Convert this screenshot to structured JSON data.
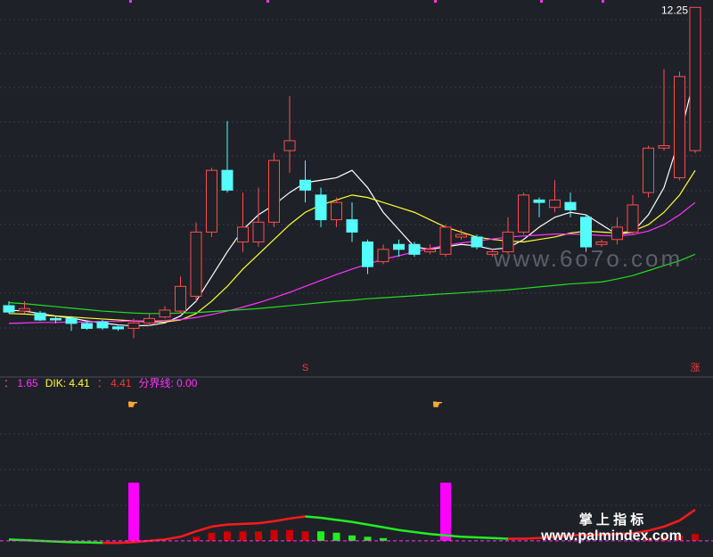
{
  "chart_data": [
    {
      "type": "candlestick",
      "ylim": [
        5.0,
        12.4
      ],
      "up_color": "#ff4d4d",
      "down_color": "#54fcfc",
      "open": [
        6.21,
        6.1,
        6.06,
        5.95,
        5.95,
        5.85,
        5.88,
        5.78,
        5.75,
        5.86,
        5.98,
        6.1,
        6.4,
        7.7,
        8.95,
        7.5,
        7.5,
        7.9,
        9.35,
        8.75,
        8.45,
        7.95,
        7.95,
        7.5,
        7.1,
        7.45,
        7.45,
        7.3,
        7.25,
        7.6,
        7.6,
        7.25,
        7.3,
        7.7,
        8.35,
        8.2,
        8.3,
        8.0,
        7.45,
        7.55,
        7.7,
        8.5,
        9.4,
        8.8,
        9.35
      ],
      "close": [
        6.08,
        6.15,
        5.92,
        5.92,
        5.85,
        5.75,
        5.76,
        5.74,
        5.86,
        5.95,
        6.12,
        6.6,
        7.7,
        8.95,
        8.55,
        7.8,
        7.9,
        9.15,
        9.55,
        8.55,
        7.95,
        8.3,
        7.7,
        7.0,
        7.35,
        7.35,
        7.25,
        7.35,
        7.8,
        7.65,
        7.4,
        7.3,
        7.7,
        8.45,
        8.3,
        8.35,
        8.15,
        7.4,
        7.5,
        7.8,
        8.25,
        9.4,
        9.45,
        10.85,
        12.25
      ],
      "high": [
        6.3,
        6.3,
        6.1,
        6.0,
        6.0,
        5.88,
        5.92,
        5.8,
        5.95,
        6.05,
        6.2,
        6.8,
        7.9,
        9.0,
        9.95,
        8.5,
        8.6,
        9.3,
        10.45,
        9.15,
        8.6,
        8.4,
        8.3,
        7.55,
        7.45,
        7.55,
        7.5,
        7.45,
        7.85,
        7.75,
        7.65,
        7.35,
        8.0,
        8.5,
        8.4,
        8.75,
        8.5,
        8.05,
        7.55,
        8.0,
        8.45,
        9.45,
        11.0,
        10.95,
        12.25
      ],
      "low": [
        6.05,
        6.05,
        5.9,
        5.85,
        5.7,
        5.72,
        5.72,
        5.7,
        5.55,
        5.8,
        5.95,
        6.05,
        6.3,
        7.6,
        8.5,
        7.3,
        7.4,
        7.8,
        8.9,
        8.3,
        7.8,
        7.8,
        7.5,
        6.85,
        7.05,
        7.2,
        7.2,
        7.25,
        7.2,
        7.55,
        7.35,
        7.2,
        7.25,
        7.65,
        8.0,
        8.1,
        8.0,
        7.3,
        7.4,
        7.45,
        7.65,
        8.4,
        9.35,
        8.75,
        9.3
      ],
      "series": [
        {
          "color": "#ffffff",
          "values": [
            6.12,
            6.1,
            6.05,
            6.0,
            5.96,
            5.9,
            5.86,
            5.82,
            5.8,
            5.81,
            5.86,
            6.0,
            6.3,
            6.8,
            7.3,
            7.75,
            8.05,
            8.25,
            8.5,
            8.7,
            8.75,
            8.8,
            8.95,
            8.6,
            8.1,
            7.75,
            7.4,
            7.35,
            7.4,
            7.45,
            7.42,
            7.35,
            7.38,
            7.55,
            7.8,
            8.0,
            8.1,
            8.05,
            7.85,
            7.65,
            7.7,
            8.05,
            8.6,
            9.6,
            10.9
          ]
        },
        {
          "color": "#ffff33",
          "values": [
            6.05,
            6.04,
            6.02,
            6.0,
            5.98,
            5.96,
            5.94,
            5.92,
            5.9,
            5.88,
            5.88,
            5.92,
            6.05,
            6.3,
            6.6,
            6.95,
            7.25,
            7.55,
            7.85,
            8.1,
            8.25,
            8.35,
            8.45,
            8.4,
            8.3,
            8.2,
            8.1,
            7.95,
            7.8,
            7.7,
            7.6,
            7.55,
            7.52,
            7.5,
            7.55,
            7.6,
            7.68,
            7.72,
            7.7,
            7.68,
            7.72,
            7.85,
            8.1,
            8.45,
            8.95
          ]
        },
        {
          "color": "#ff33ff",
          "values": [
            5.85,
            5.86,
            5.87,
            5.87,
            5.88,
            5.88,
            5.89,
            5.89,
            5.9,
            5.9,
            5.91,
            5.93,
            5.97,
            6.03,
            6.1,
            6.18,
            6.27,
            6.37,
            6.48,
            6.6,
            6.72,
            6.84,
            6.95,
            7.05,
            7.15,
            7.22,
            7.3,
            7.37,
            7.43,
            7.48,
            7.52,
            7.56,
            7.6,
            7.62,
            7.64,
            7.66,
            7.66,
            7.65,
            7.63,
            7.62,
            7.65,
            7.72,
            7.85,
            8.05,
            8.3
          ]
        },
        {
          "color": "#22dd22",
          "values": [
            6.27,
            6.25,
            6.22,
            6.19,
            6.16,
            6.13,
            6.1,
            6.08,
            6.06,
            6.05,
            6.05,
            6.06,
            6.07,
            6.09,
            6.11,
            6.13,
            6.15,
            6.18,
            6.21,
            6.24,
            6.27,
            6.3,
            6.32,
            6.35,
            6.37,
            6.39,
            6.41,
            6.43,
            6.45,
            6.47,
            6.49,
            6.51,
            6.53,
            6.56,
            6.59,
            6.62,
            6.65,
            6.67,
            6.69,
            6.75,
            6.82,
            6.92,
            7.02,
            7.12,
            7.25
          ]
        }
      ],
      "annotations": [
        {
          "text": "S",
          "index": 19
        },
        {
          "text": "涨",
          "index": 44
        }
      ]
    },
    {
      "type": "indicator",
      "ylim": [
        -1,
        11
      ],
      "legend": [
        {
          "text": "： 1.65",
          "color": "#ff33ff"
        },
        {
          "text": "DIK: 4.41",
          "color": "#ffff33"
        },
        {
          "text": "： 4.41",
          "color": "#ff3333"
        },
        {
          "text": "分界线: 0.00",
          "color": "#ff33ff"
        }
      ],
      "rise_color": "#ff1a1a",
      "fall_color": "#22ee22",
      "signal_color": "#ff00ff",
      "line": [
        0.1,
        0.05,
        0.0,
        -0.05,
        -0.1,
        -0.12,
        -0.15,
        -0.15,
        -0.1,
        0.0,
        0.1,
        0.3,
        0.7,
        1.05,
        1.2,
        1.25,
        1.3,
        1.45,
        1.65,
        1.8,
        1.7,
        1.55,
        1.4,
        1.2,
        1.0,
        0.8,
        0.65,
        0.5,
        0.4,
        0.3,
        0.25,
        0.2,
        0.15,
        0.15,
        0.2,
        0.3,
        0.4,
        0.45,
        0.45,
        0.5,
        0.55,
        0.75,
        1.05,
        1.5,
        2.3
      ],
      "bars": [
        0,
        0,
        0,
        0,
        0,
        0,
        0,
        0,
        0,
        0,
        0,
        0,
        0.3,
        0.6,
        0.7,
        0.7,
        0.7,
        0.8,
        0.8,
        0.7,
        0.7,
        0.6,
        0.4,
        0.3,
        0.2,
        0,
        0,
        0,
        0,
        0,
        0,
        0,
        0,
        0,
        0,
        0,
        0,
        0,
        0,
        0,
        0,
        0.2,
        0.3,
        0.4,
        0.5
      ],
      "signals": [
        null,
        null,
        null,
        null,
        null,
        null,
        null,
        null,
        4.3,
        null,
        null,
        null,
        null,
        null,
        null,
        null,
        null,
        null,
        null,
        null,
        null,
        null,
        null,
        null,
        null,
        null,
        null,
        null,
        4.3,
        null,
        null,
        null,
        null,
        null,
        null,
        null,
        null,
        null,
        null,
        null,
        null,
        null,
        null,
        null,
        null
      ]
    }
  ],
  "watermarks": {
    "site1": "www.6o7o.com",
    "brand": "掌 上 指 标",
    "site2": "www.palmindex.com"
  }
}
